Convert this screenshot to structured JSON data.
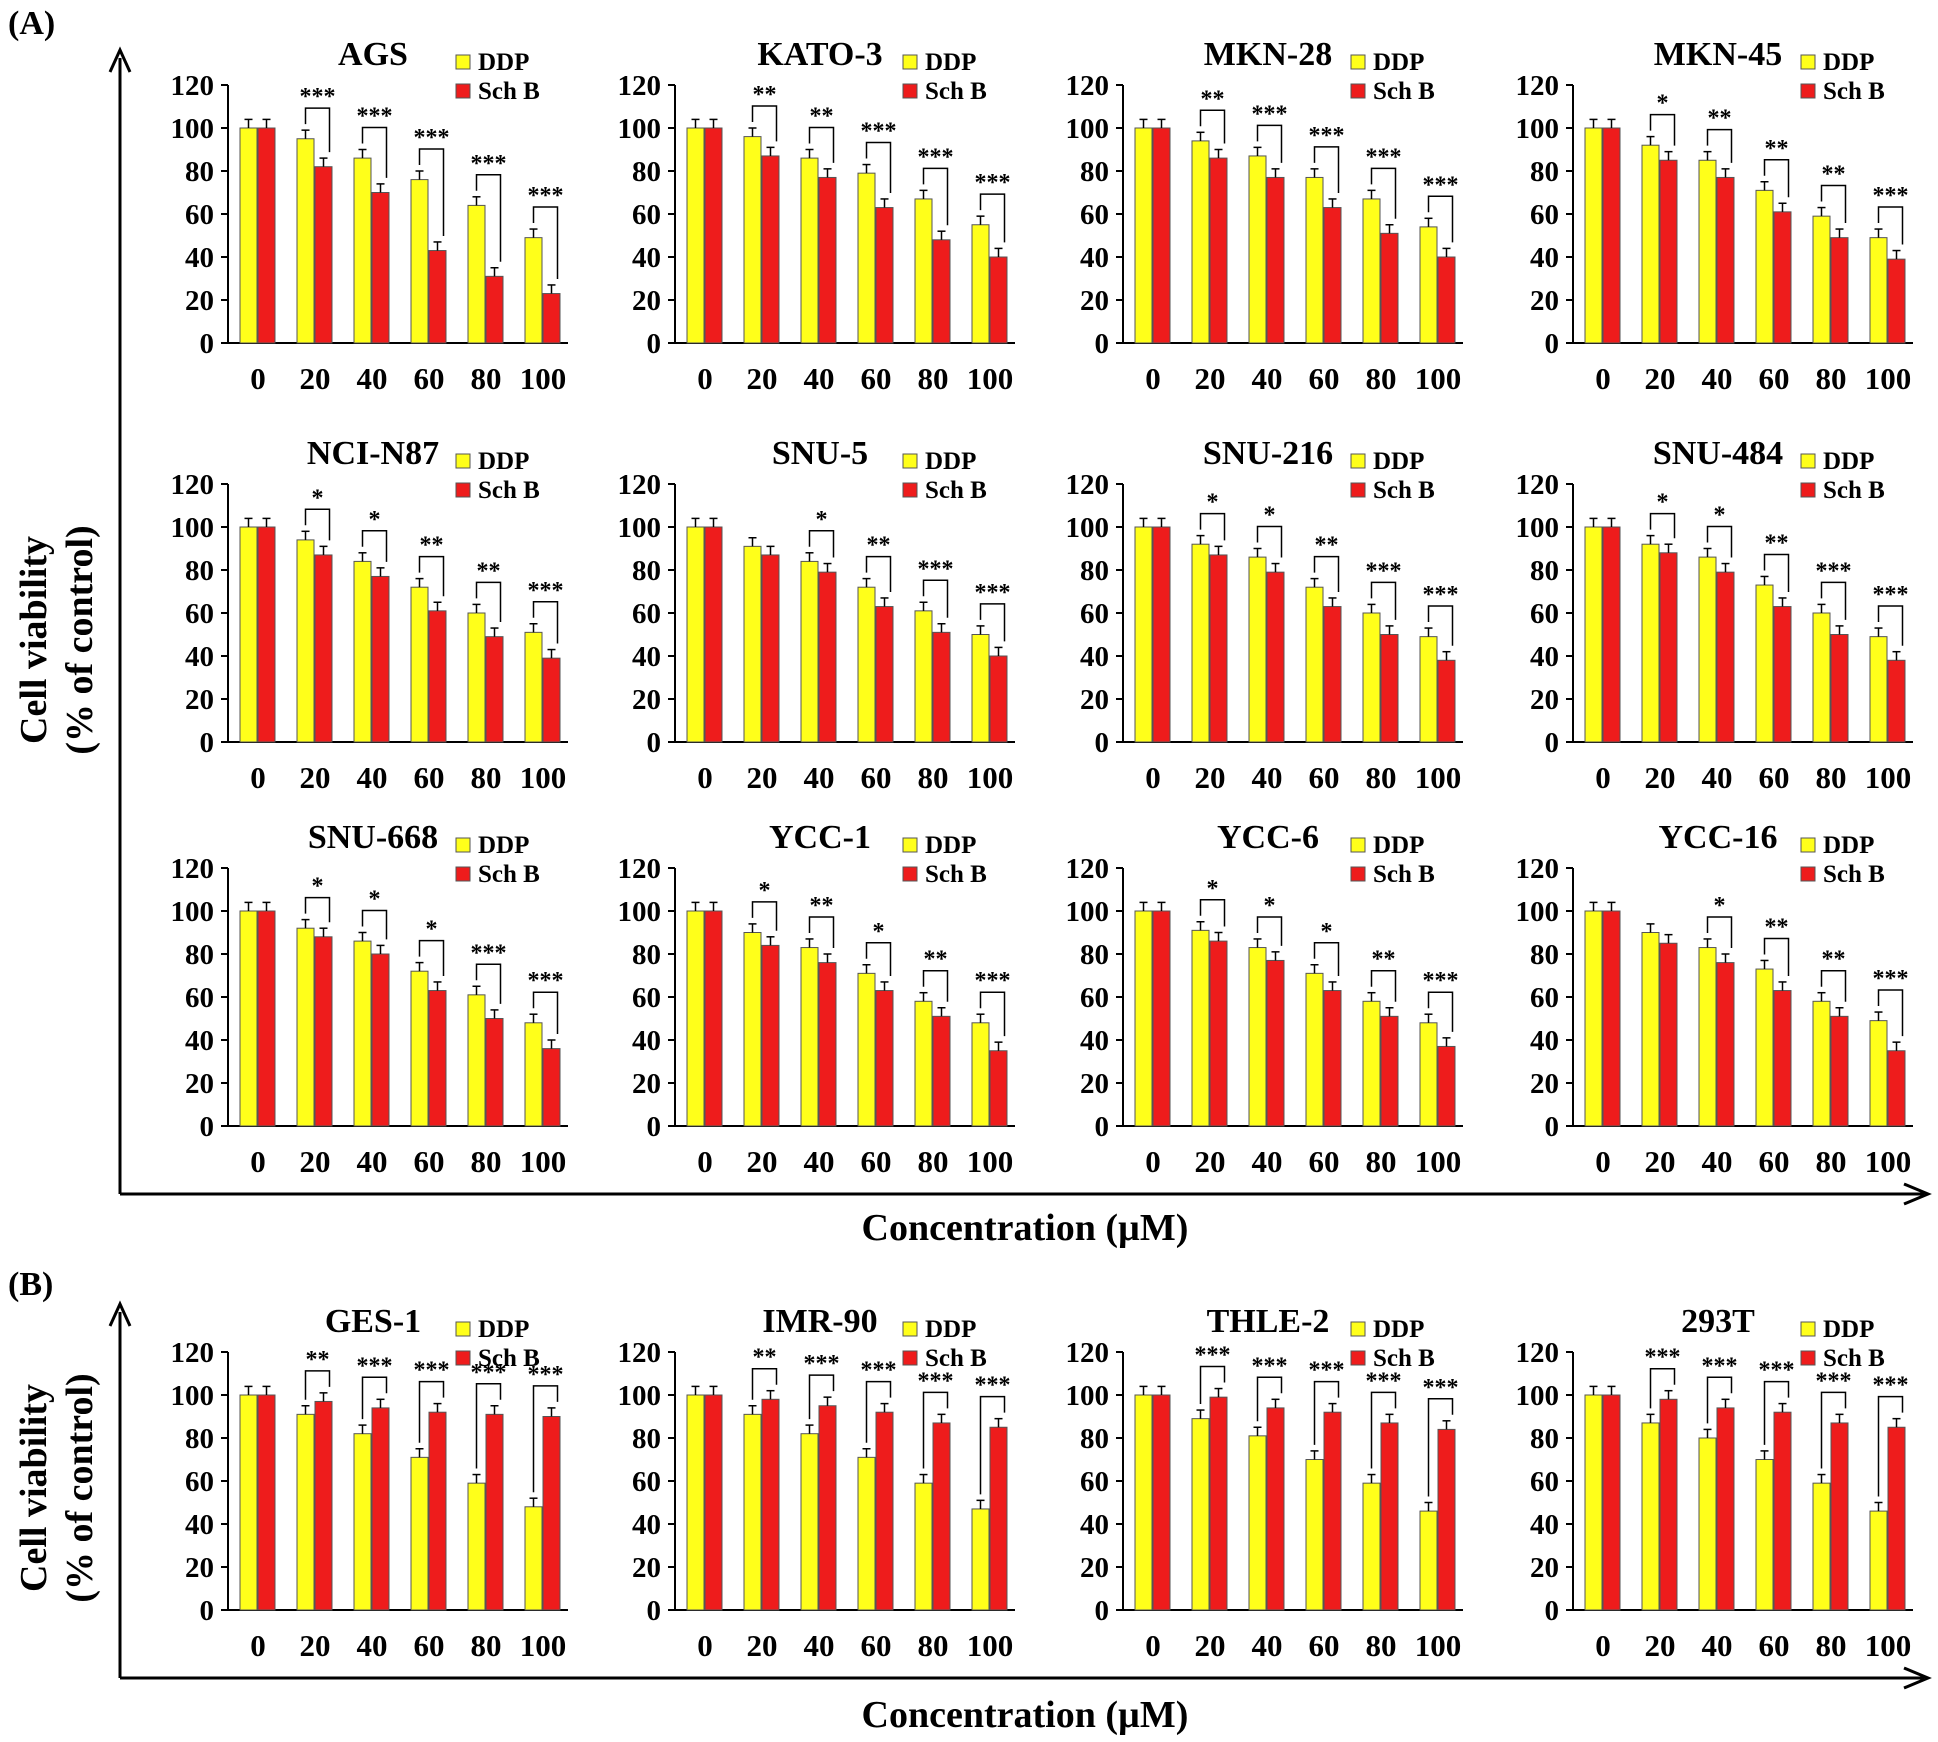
{
  "panel_labels": [
    "(A)",
    "(B)"
  ],
  "sections": [
    {
      "ylabel_line1": "Cell viability",
      "ylabel_line2": "(% of control)",
      "xlabel": "Concentration (µM)"
    },
    {
      "ylabel_line1": "Cell viability",
      "ylabel_line2": "(% of control)",
      "xlabel": "Concentration (µM)"
    }
  ],
  "colors": {
    "DDP": "#ffff1a",
    "Sch B": "#ee1c1c"
  },
  "chart_data": [
    {
      "type": "bar",
      "title": "AGS",
      "categories": [
        "0",
        "20",
        "40",
        "60",
        "80",
        "100"
      ],
      "ylim": [
        0,
        120
      ],
      "yticks": [
        "0",
        "20",
        "40",
        "60",
        "80",
        "100",
        "120"
      ],
      "series": [
        {
          "name": "DDP",
          "values": [
            100,
            95,
            86,
            76,
            64,
            49
          ]
        },
        {
          "name": "Sch B",
          "values": [
            100,
            82,
            70,
            43,
            31,
            23
          ]
        }
      ],
      "significance": [
        "",
        "***",
        "***",
        "***",
        "***",
        "***"
      ]
    },
    {
      "type": "bar",
      "title": "KATO-3",
      "categories": [
        "0",
        "20",
        "40",
        "60",
        "80",
        "100"
      ],
      "ylim": [
        0,
        120
      ],
      "yticks": [
        "0",
        "20",
        "40",
        "60",
        "80",
        "100",
        "120"
      ],
      "series": [
        {
          "name": "DDP",
          "values": [
            100,
            96,
            86,
            79,
            67,
            55
          ]
        },
        {
          "name": "Sch B",
          "values": [
            100,
            87,
            77,
            63,
            48,
            40
          ]
        }
      ],
      "significance": [
        "",
        "**",
        "**",
        "***",
        "***",
        "***"
      ]
    },
    {
      "type": "bar",
      "title": "MKN-28",
      "categories": [
        "0",
        "20",
        "40",
        "60",
        "80",
        "100"
      ],
      "ylim": [
        0,
        120
      ],
      "yticks": [
        "0",
        "20",
        "40",
        "60",
        "80",
        "100",
        "120"
      ],
      "series": [
        {
          "name": "DDP",
          "values": [
            100,
            94,
            87,
            77,
            67,
            54
          ]
        },
        {
          "name": "Sch B",
          "values": [
            100,
            86,
            77,
            63,
            51,
            40
          ]
        }
      ],
      "significance": [
        "",
        "**",
        "***",
        "***",
        "***",
        "***"
      ]
    },
    {
      "type": "bar",
      "title": "MKN-45",
      "categories": [
        "0",
        "20",
        "40",
        "60",
        "80",
        "100"
      ],
      "ylim": [
        0,
        120
      ],
      "yticks": [
        "0",
        "20",
        "40",
        "60",
        "80",
        "100",
        "120"
      ],
      "series": [
        {
          "name": "DDP",
          "values": [
            100,
            92,
            85,
            71,
            59,
            49
          ]
        },
        {
          "name": "Sch B",
          "values": [
            100,
            85,
            77,
            61,
            49,
            39
          ]
        }
      ],
      "significance": [
        "",
        "*",
        "**",
        "**",
        "**",
        "***"
      ]
    },
    {
      "type": "bar",
      "title": "NCI-N87",
      "categories": [
        "0",
        "20",
        "40",
        "60",
        "80",
        "100"
      ],
      "ylim": [
        0,
        120
      ],
      "yticks": [
        "0",
        "20",
        "40",
        "60",
        "80",
        "100",
        "120"
      ],
      "series": [
        {
          "name": "DDP",
          "values": [
            100,
            94,
            84,
            72,
            60,
            51
          ]
        },
        {
          "name": "Sch B",
          "values": [
            100,
            87,
            77,
            61,
            49,
            39
          ]
        }
      ],
      "significance": [
        "",
        "*",
        "*",
        "**",
        "**",
        "***"
      ]
    },
    {
      "type": "bar",
      "title": "SNU-5",
      "categories": [
        "0",
        "20",
        "40",
        "60",
        "80",
        "100"
      ],
      "ylim": [
        0,
        120
      ],
      "yticks": [
        "0",
        "20",
        "40",
        "60",
        "80",
        "100",
        "120"
      ],
      "series": [
        {
          "name": "DDP",
          "values": [
            100,
            91,
            84,
            72,
            61,
            50
          ]
        },
        {
          "name": "Sch B",
          "values": [
            100,
            87,
            79,
            63,
            51,
            40
          ]
        }
      ],
      "significance": [
        "",
        "",
        "*",
        "**",
        "***",
        "***"
      ]
    },
    {
      "type": "bar",
      "title": "SNU-216",
      "categories": [
        "0",
        "20",
        "40",
        "60",
        "80",
        "100"
      ],
      "ylim": [
        0,
        120
      ],
      "yticks": [
        "0",
        "20",
        "40",
        "60",
        "80",
        "100",
        "120"
      ],
      "series": [
        {
          "name": "DDP",
          "values": [
            100,
            92,
            86,
            72,
            60,
            49
          ]
        },
        {
          "name": "Sch B",
          "values": [
            100,
            87,
            79,
            63,
            50,
            38
          ]
        }
      ],
      "significance": [
        "",
        "*",
        "*",
        "**",
        "***",
        "***"
      ]
    },
    {
      "type": "bar",
      "title": "SNU-484",
      "categories": [
        "0",
        "20",
        "40",
        "60",
        "80",
        "100"
      ],
      "ylim": [
        0,
        120
      ],
      "yticks": [
        "0",
        "20",
        "40",
        "60",
        "80",
        "100",
        "120"
      ],
      "series": [
        {
          "name": "DDP",
          "values": [
            100,
            92,
            86,
            73,
            60,
            49
          ]
        },
        {
          "name": "Sch B",
          "values": [
            100,
            88,
            79,
            63,
            50,
            38
          ]
        }
      ],
      "significance": [
        "",
        "*",
        "*",
        "**",
        "***",
        "***"
      ]
    },
    {
      "type": "bar",
      "title": "SNU-668",
      "categories": [
        "0",
        "20",
        "40",
        "60",
        "80",
        "100"
      ],
      "ylim": [
        0,
        120
      ],
      "yticks": [
        "0",
        "20",
        "40",
        "60",
        "80",
        "100",
        "120"
      ],
      "series": [
        {
          "name": "DDP",
          "values": [
            100,
            92,
            86,
            72,
            61,
            48
          ]
        },
        {
          "name": "Sch B",
          "values": [
            100,
            88,
            80,
            63,
            50,
            36
          ]
        }
      ],
      "significance": [
        "",
        "*",
        "*",
        "*",
        "***",
        "***"
      ]
    },
    {
      "type": "bar",
      "title": "YCC-1",
      "categories": [
        "0",
        "20",
        "40",
        "60",
        "80",
        "100"
      ],
      "ylim": [
        0,
        120
      ],
      "yticks": [
        "0",
        "20",
        "40",
        "60",
        "80",
        "100",
        "120"
      ],
      "series": [
        {
          "name": "DDP",
          "values": [
            100,
            90,
            83,
            71,
            58,
            48
          ]
        },
        {
          "name": "Sch B",
          "values": [
            100,
            84,
            76,
            63,
            51,
            35
          ]
        }
      ],
      "significance": [
        "",
        "*",
        "**",
        "*",
        "**",
        "***"
      ]
    },
    {
      "type": "bar",
      "title": "YCC-6",
      "categories": [
        "0",
        "20",
        "40",
        "60",
        "80",
        "100"
      ],
      "ylim": [
        0,
        120
      ],
      "yticks": [
        "0",
        "20",
        "40",
        "60",
        "80",
        "100",
        "120"
      ],
      "series": [
        {
          "name": "DDP",
          "values": [
            100,
            91,
            83,
            71,
            58,
            48
          ]
        },
        {
          "name": "Sch B",
          "values": [
            100,
            86,
            77,
            63,
            51,
            37
          ]
        }
      ],
      "significance": [
        "",
        "*",
        "*",
        "*",
        "**",
        "***"
      ]
    },
    {
      "type": "bar",
      "title": "YCC-16",
      "categories": [
        "0",
        "20",
        "40",
        "60",
        "80",
        "100"
      ],
      "ylim": [
        0,
        120
      ],
      "yticks": [
        "0",
        "20",
        "40",
        "60",
        "80",
        "100",
        "120"
      ],
      "series": [
        {
          "name": "DDP",
          "values": [
            100,
            90,
            83,
            73,
            58,
            49
          ]
        },
        {
          "name": "Sch B",
          "values": [
            100,
            85,
            76,
            63,
            51,
            35
          ]
        }
      ],
      "significance": [
        "",
        "",
        "*",
        "**",
        "**",
        "***"
      ]
    },
    {
      "type": "bar",
      "title": "GES-1",
      "categories": [
        "0",
        "20",
        "40",
        "60",
        "80",
        "100"
      ],
      "ylim": [
        0,
        120
      ],
      "yticks": [
        "0",
        "20",
        "40",
        "60",
        "80",
        "100",
        "120"
      ],
      "series": [
        {
          "name": "DDP",
          "values": [
            100,
            91,
            82,
            71,
            59,
            48
          ]
        },
        {
          "name": "Sch B",
          "values": [
            100,
            97,
            94,
            92,
            91,
            90
          ]
        }
      ],
      "significance": [
        "",
        "**",
        "***",
        "***",
        "***",
        "***"
      ]
    },
    {
      "type": "bar",
      "title": "IMR-90",
      "categories": [
        "0",
        "20",
        "40",
        "60",
        "80",
        "100"
      ],
      "ylim": [
        0,
        120
      ],
      "yticks": [
        "0",
        "20",
        "40",
        "60",
        "80",
        "100",
        "120"
      ],
      "series": [
        {
          "name": "DDP",
          "values": [
            100,
            91,
            82,
            71,
            59,
            47
          ]
        },
        {
          "name": "Sch B",
          "values": [
            100,
            98,
            95,
            92,
            87,
            85
          ]
        }
      ],
      "significance": [
        "",
        "**",
        "***",
        "***",
        "***",
        "***"
      ]
    },
    {
      "type": "bar",
      "title": "THLE-2",
      "categories": [
        "0",
        "20",
        "40",
        "60",
        "80",
        "100"
      ],
      "ylim": [
        0,
        120
      ],
      "yticks": [
        "0",
        "20",
        "40",
        "60",
        "80",
        "100",
        "120"
      ],
      "series": [
        {
          "name": "DDP",
          "values": [
            100,
            89,
            81,
            70,
            59,
            46
          ]
        },
        {
          "name": "Sch B",
          "values": [
            100,
            99,
            94,
            92,
            87,
            84
          ]
        }
      ],
      "significance": [
        "",
        "***",
        "***",
        "***",
        "***",
        "***"
      ]
    },
    {
      "type": "bar",
      "title": "293T",
      "categories": [
        "0",
        "20",
        "40",
        "60",
        "80",
        "100"
      ],
      "ylim": [
        0,
        120
      ],
      "yticks": [
        "0",
        "20",
        "40",
        "60",
        "80",
        "100",
        "120"
      ],
      "series": [
        {
          "name": "DDP",
          "values": [
            100,
            87,
            80,
            70,
            59,
            46
          ]
        },
        {
          "name": "Sch B",
          "values": [
            100,
            98,
            94,
            92,
            87,
            85
          ]
        }
      ],
      "significance": [
        "",
        "***",
        "***",
        "***",
        "***",
        "***"
      ]
    }
  ]
}
